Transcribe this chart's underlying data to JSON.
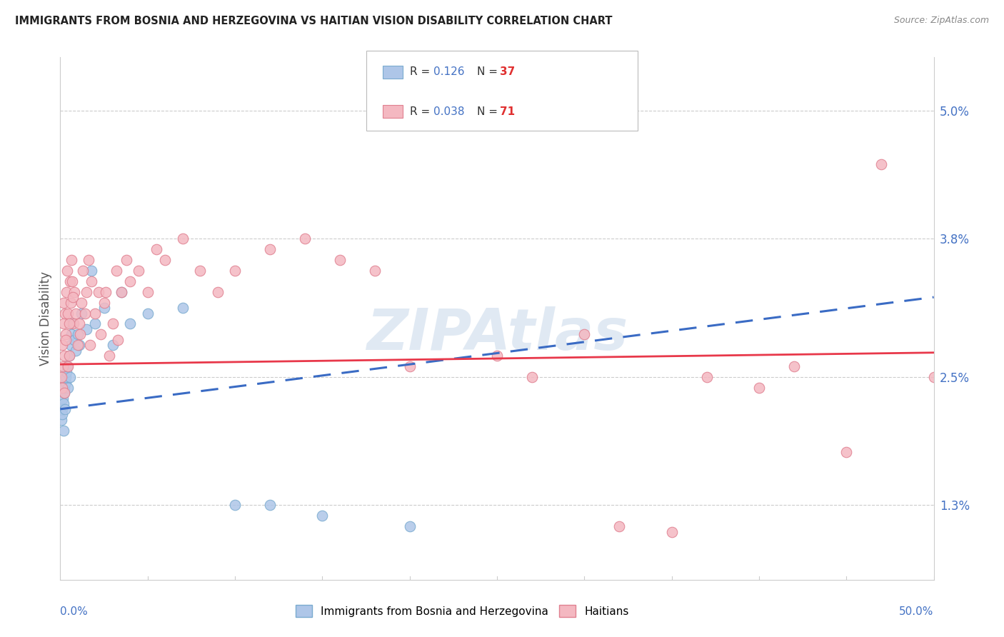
{
  "title": "IMMIGRANTS FROM BOSNIA AND HERZEGOVINA VS HAITIAN VISION DISABILITY CORRELATION CHART",
  "source": "Source: ZipAtlas.com",
  "ylabel": "Vision Disability",
  "ytick_labels": [
    "1.3%",
    "2.5%",
    "3.8%",
    "5.0%"
  ],
  "ytick_values": [
    1.3,
    2.5,
    3.8,
    5.0
  ],
  "legend1_R": "0.126",
  "legend1_N": "37",
  "legend2_R": "0.038",
  "legend2_N": "71",
  "watermark_text": "ZIPAtlas",
  "bosnia_x": [
    0.05,
    0.1,
    0.12,
    0.15,
    0.18,
    0.2,
    0.22,
    0.25,
    0.28,
    0.3,
    0.32,
    0.35,
    0.4,
    0.45,
    0.5,
    0.55,
    0.6,
    0.65,
    0.7,
    0.8,
    0.9,
    1.0,
    1.1,
    1.2,
    1.5,
    1.8,
    2.0,
    2.5,
    3.0,
    3.5,
    4.0,
    5.0,
    7.0,
    10.0,
    12.0,
    15.0,
    20.0
  ],
  "bosnia_y": [
    2.1,
    2.2,
    2.15,
    2.3,
    2.0,
    2.25,
    2.35,
    2.4,
    2.2,
    2.45,
    2.5,
    2.55,
    2.6,
    2.4,
    2.7,
    2.5,
    2.8,
    2.9,
    3.0,
    2.85,
    2.75,
    2.9,
    2.8,
    3.1,
    2.95,
    3.5,
    3.0,
    3.15,
    2.8,
    3.3,
    3.0,
    3.1,
    3.15,
    1.3,
    1.3,
    1.2,
    1.1
  ],
  "haiti_x": [
    0.05,
    0.1,
    0.12,
    0.15,
    0.18,
    0.2,
    0.25,
    0.28,
    0.3,
    0.35,
    0.4,
    0.45,
    0.5,
    0.55,
    0.6,
    0.65,
    0.7,
    0.75,
    0.8,
    0.9,
    1.0,
    1.1,
    1.2,
    1.3,
    1.5,
    1.6,
    1.8,
    2.0,
    2.2,
    2.5,
    2.8,
    3.0,
    3.2,
    3.5,
    3.8,
    4.0,
    4.5,
    5.0,
    5.5,
    6.0,
    7.0,
    8.0,
    9.0,
    10.0,
    12.0,
    14.0,
    16.0,
    18.0,
    20.0,
    25.0,
    27.0,
    30.0,
    32.0,
    35.0,
    37.0,
    40.0,
    42.0,
    45.0,
    47.0,
    50.0,
    0.22,
    0.32,
    0.42,
    0.52,
    0.72,
    1.15,
    1.4,
    1.7,
    2.3,
    2.6,
    3.3
  ],
  "haiti_y": [
    2.5,
    2.4,
    2.8,
    2.6,
    3.2,
    3.0,
    2.7,
    3.1,
    2.9,
    3.3,
    3.5,
    3.1,
    2.7,
    3.4,
    3.2,
    3.6,
    3.4,
    3.0,
    3.3,
    3.1,
    2.8,
    3.0,
    3.2,
    3.5,
    3.3,
    3.6,
    3.4,
    3.1,
    3.3,
    3.2,
    2.7,
    3.0,
    3.5,
    3.3,
    3.6,
    3.4,
    3.5,
    3.3,
    3.7,
    3.6,
    3.8,
    3.5,
    3.3,
    3.5,
    3.7,
    3.8,
    3.6,
    3.5,
    2.6,
    2.7,
    2.5,
    2.9,
    1.1,
    1.05,
    2.5,
    2.4,
    2.6,
    1.8,
    4.5,
    2.5,
    2.35,
    2.85,
    2.6,
    3.0,
    3.25,
    2.9,
    3.1,
    2.8,
    2.9,
    3.3,
    2.85
  ],
  "xmin": 0.0,
  "xmax": 50.0,
  "ymin": 0.6,
  "ymax": 5.5,
  "blue_scatter_color": "#aec6e8",
  "blue_scatter_edge": "#7aabcf",
  "pink_scatter_color": "#f4b8c1",
  "pink_scatter_edge": "#e08090",
  "blue_line_color": "#3a6bc4",
  "pink_line_color": "#e8384a",
  "grid_color": "#cccccc",
  "title_color": "#222222",
  "source_color": "#888888",
  "ylabel_color": "#555555",
  "tick_label_color": "#4472c4",
  "watermark_color": "#c8d8ea"
}
